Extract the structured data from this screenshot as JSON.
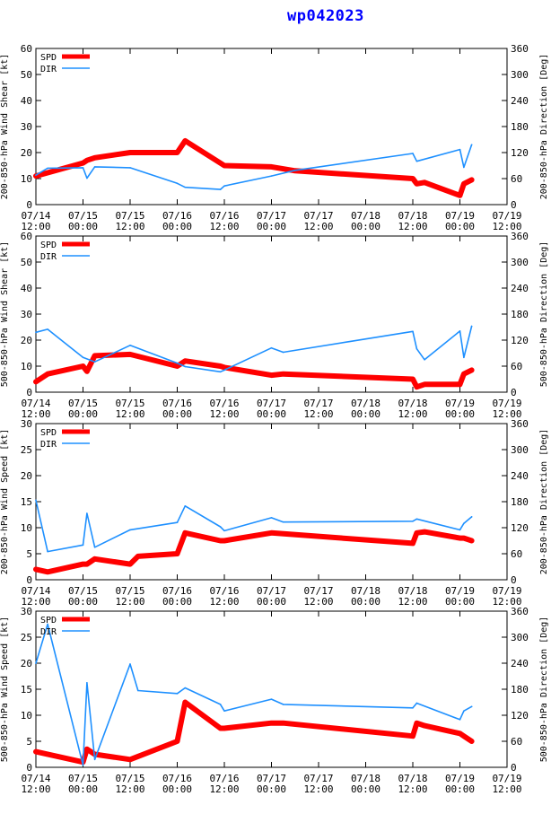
{
  "page_title": "wp042023",
  "colors": {
    "title": "#0000ff",
    "spd": "#ff0000",
    "dir": "#1e90ff",
    "axis": "#000000"
  },
  "x_tick_labels": [
    [
      "07/14",
      "12:00"
    ],
    [
      "07/15",
      "00:00"
    ],
    [
      "07/15",
      "12:00"
    ],
    [
      "07/16",
      "00:00"
    ],
    [
      "07/16",
      "12:00"
    ],
    [
      "07/17",
      "00:00"
    ],
    [
      "07/17",
      "12:00"
    ],
    [
      "07/18",
      "00:00"
    ],
    [
      "07/18",
      "12:00"
    ],
    [
      "07/19",
      "00:00"
    ],
    [
      "07/19",
      "12:00"
    ]
  ],
  "chart_data": [
    {
      "type": "line",
      "ylabel": "200-850-hPa Wind Shear [kt]",
      "y2label": "200-850-hPa Direction [Deg]",
      "ylim": [
        0,
        60
      ],
      "yticks": [
        0,
        10,
        20,
        30,
        40,
        50,
        60
      ],
      "y2lim": [
        0,
        360
      ],
      "y2ticks": [
        0,
        60,
        120,
        180,
        240,
        300,
        360
      ],
      "xlim": [
        0,
        120
      ],
      "legend": [
        "SPD",
        "DIR"
      ],
      "series": [
        {
          "name": "SPD",
          "axis": "left",
          "x": [
            0,
            12,
            13,
            15,
            24,
            36,
            38,
            48,
            60,
            66,
            96,
            97,
            99,
            108,
            109,
            111
          ],
          "values": [
            11,
            16,
            17,
            18,
            20,
            20,
            24.5,
            15,
            14.5,
            13,
            10,
            8,
            8.5,
            3.5,
            8,
            9.5
          ]
        },
        {
          "name": "DIR",
          "axis": "left2",
          "x": [
            0,
            3,
            12,
            13,
            15,
            24,
            36,
            38,
            47,
            48,
            60,
            66,
            96,
            97,
            108,
            109,
            111
          ],
          "values": [
            68,
            84,
            85,
            61,
            87,
            85,
            49,
            40,
            35,
            43,
            66,
            79,
            118,
            100,
            127,
            86,
            138
          ]
        }
      ]
    },
    {
      "type": "line",
      "ylabel": "500-850-hPa Wind Shear [kt]",
      "y2label": "500-850-hPa Direction [Deg]",
      "ylim": [
        0,
        60
      ],
      "yticks": [
        0,
        10,
        20,
        30,
        40,
        50,
        60
      ],
      "y2lim": [
        0,
        360
      ],
      "y2ticks": [
        0,
        60,
        120,
        180,
        240,
        300,
        360
      ],
      "xlim": [
        0,
        120
      ],
      "legend": [
        "SPD",
        "DIR"
      ],
      "series": [
        {
          "name": "SPD",
          "axis": "left",
          "x": [
            0,
            3,
            12,
            13,
            15,
            24,
            36,
            38,
            47,
            48,
            60,
            63,
            96,
            97,
            99,
            108,
            109,
            111
          ],
          "values": [
            4,
            7,
            10,
            8,
            14,
            14.5,
            10,
            12,
            10,
            9.5,
            6.5,
            7,
            5,
            2,
            3,
            3,
            7,
            8.5
          ]
        },
        {
          "name": "DIR",
          "axis": "left2",
          "x": [
            0,
            3,
            12,
            15,
            24,
            36,
            38,
            47,
            48,
            60,
            63,
            96,
            97,
            99,
            108,
            109,
            111
          ],
          "values": [
            138,
            145,
            80,
            70,
            108,
            67,
            59,
            47,
            51,
            102,
            92,
            140,
            100,
            75,
            141,
            80,
            152
          ]
        }
      ]
    },
    {
      "type": "line",
      "ylabel": "200-850-hPa Wind Speed [kt]",
      "y2label": "200-850-hPa Direction [Deg]",
      "ylim": [
        0,
        30
      ],
      "yticks": [
        0,
        5,
        10,
        15,
        20,
        25,
        30
      ],
      "y2lim": [
        0,
        360
      ],
      "y2ticks": [
        0,
        60,
        120,
        180,
        240,
        300,
        360
      ],
      "xlim": [
        0,
        120
      ],
      "legend": [
        "SPD",
        "DIR"
      ],
      "series": [
        {
          "name": "SPD",
          "axis": "left",
          "x": [
            0,
            3,
            12,
            13,
            15,
            24,
            26,
            36,
            38,
            47,
            48,
            60,
            96,
            97,
            99,
            108,
            109,
            111
          ],
          "values": [
            2,
            1.5,
            3,
            3,
            4,
            3,
            4.5,
            5,
            9,
            7.5,
            7.5,
            9,
            7,
            9,
            9.2,
            8,
            8,
            7.5
          ]
        },
        {
          "name": "DIR",
          "axis": "left2",
          "x": [
            0,
            3,
            12,
            13,
            15,
            24,
            36,
            38,
            47,
            48,
            60,
            63,
            96,
            97,
            108,
            109,
            111
          ],
          "values": [
            183,
            65,
            80,
            153,
            75,
            115,
            132,
            170,
            122,
            113,
            143,
            133,
            135,
            140,
            115,
            130,
            145
          ]
        }
      ]
    },
    {
      "type": "line",
      "ylabel": "500-850-hPa Wind Speed [kt]",
      "y2label": "500-850-hPa Direction [Deg]",
      "ylim": [
        0,
        30
      ],
      "yticks": [
        0,
        5,
        10,
        15,
        20,
        25,
        30
      ],
      "y2lim": [
        0,
        360
      ],
      "y2ticks": [
        0,
        60,
        120,
        180,
        240,
        300,
        360
      ],
      "xlim": [
        0,
        120
      ],
      "legend": [
        "SPD",
        "DIR"
      ],
      "series": [
        {
          "name": "SPD",
          "axis": "left",
          "x": [
            0,
            12,
            13,
            15,
            24,
            36,
            38,
            47,
            48,
            60,
            63,
            96,
            97,
            99,
            108,
            109,
            111
          ],
          "values": [
            3,
            1,
            3.5,
            2.5,
            1.5,
            5,
            12.5,
            7.5,
            7.5,
            8.5,
            8.5,
            6,
            8.5,
            8,
            6.5,
            6,
            5
          ]
        },
        {
          "name": "DIR",
          "axis": "left2",
          "x": [
            0,
            3,
            12,
            13,
            15,
            24,
            26,
            36,
            38,
            47,
            48,
            60,
            63,
            96,
            97,
            108,
            109,
            111
          ],
          "values": [
            240,
            330,
            5,
            195,
            18,
            238,
            177,
            170,
            183,
            145,
            130,
            157,
            145,
            137,
            148,
            110,
            130,
            140
          ]
        }
      ]
    }
  ]
}
